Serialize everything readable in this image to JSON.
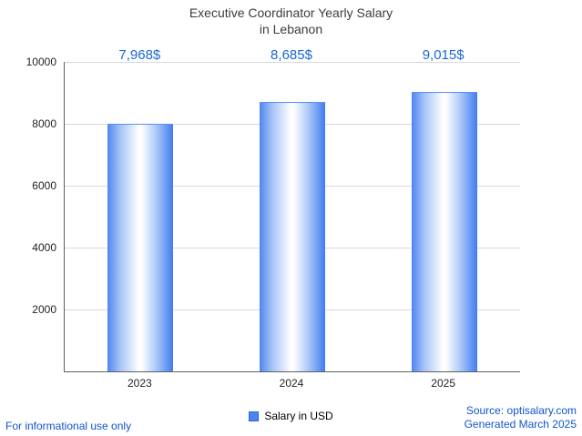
{
  "title": {
    "line1": "Executive Coordinator Yearly Salary",
    "line2": "in Lebanon"
  },
  "chart_data": {
    "type": "bar",
    "title": "Executive Coordinator Yearly Salary in Lebanon",
    "categories": [
      "2023",
      "2024",
      "2025"
    ],
    "values": [
      7968,
      8685,
      9015
    ],
    "value_labels": [
      "7,968$",
      "8,685$",
      "9,015$"
    ],
    "xlabel": "",
    "ylabel": "",
    "ylim": [
      0,
      10000
    ],
    "yticks": [
      2000,
      4000,
      6000,
      8000,
      10000
    ],
    "ytick_labels": [
      "2000",
      "4000",
      "6000",
      "8000",
      "10000"
    ],
    "grid": true,
    "legend": {
      "label": "Salary in USD",
      "position": "bottom"
    },
    "colors": {
      "bar_edge": "#4f86ef",
      "bar_center": "#ffffff",
      "value_label_text": "#1967d2",
      "axis_text": "#1f1f1f",
      "gridline": "#d9d9d9",
      "link_text": "#1155cc"
    }
  },
  "legend": {
    "label": "Salary in USD"
  },
  "footer": {
    "disclaimer": "For informational use only",
    "source": "Source: optisalary.com",
    "generated": "Generated March 2025"
  }
}
